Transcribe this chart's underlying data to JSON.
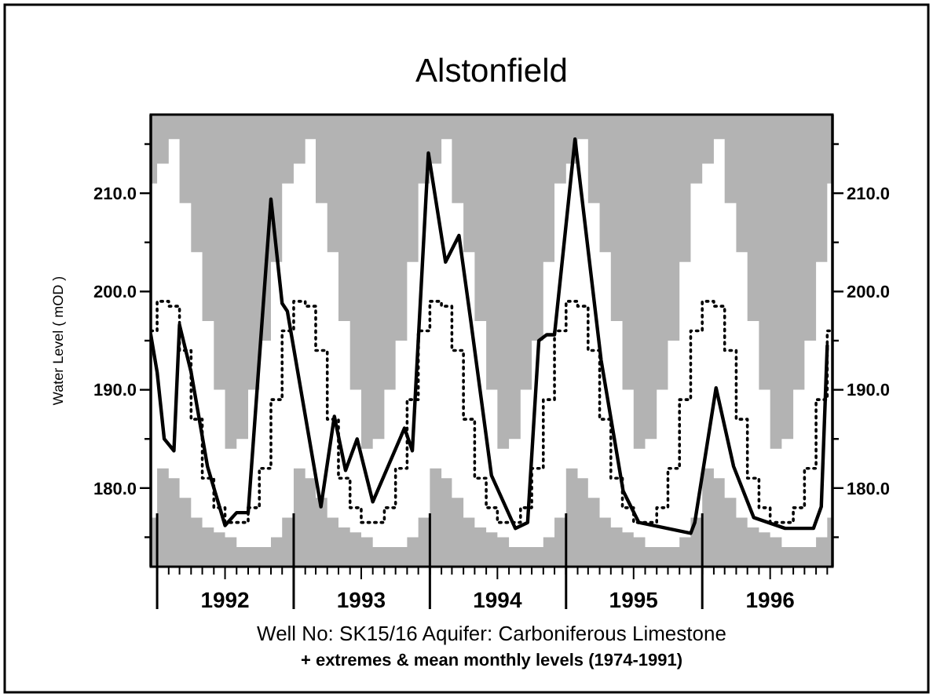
{
  "chart_data": {
    "type": "line",
    "title": "Alstonfield",
    "ylabel": "Water Level ( mOD )",
    "annotations": [
      "Well No: SK15/16  Aquifer: Carboniferous Limestone",
      "+ extremes & mean monthly levels (1974-1991)"
    ],
    "xlim": [
      "1991-12-15",
      "1996-12-15"
    ],
    "xticks": [
      {
        "value": "1992-01",
        "label": null
      },
      {
        "value": "1992-02",
        "label": null
      },
      {
        "value": "1992-03",
        "label": null
      },
      {
        "value": "1992-04",
        "label": null
      },
      {
        "value": "1992-05",
        "label": null
      },
      {
        "value": "1992-06",
        "label": null
      },
      {
        "value": "1992-07",
        "label": "1992"
      },
      {
        "value": "1992-08",
        "label": null
      },
      {
        "value": "1992-09",
        "label": null
      },
      {
        "value": "1992-10",
        "label": null
      },
      {
        "value": "1992-11",
        "label": null
      },
      {
        "value": "1992-12",
        "label": null
      },
      {
        "value": "1993-01",
        "label": null
      },
      {
        "value": "1993-02",
        "label": null
      },
      {
        "value": "1993-03",
        "label": null
      },
      {
        "value": "1993-04",
        "label": null
      },
      {
        "value": "1993-05",
        "label": null
      },
      {
        "value": "1993-06",
        "label": null
      },
      {
        "value": "1993-07",
        "label": "1993"
      },
      {
        "value": "1993-08",
        "label": null
      },
      {
        "value": "1993-09",
        "label": null
      },
      {
        "value": "1993-10",
        "label": null
      },
      {
        "value": "1993-11",
        "label": null
      },
      {
        "value": "1993-12",
        "label": null
      },
      {
        "value": "1994-01",
        "label": null
      },
      {
        "value": "1994-02",
        "label": null
      },
      {
        "value": "1994-03",
        "label": null
      },
      {
        "value": "1994-04",
        "label": null
      },
      {
        "value": "1994-05",
        "label": null
      },
      {
        "value": "1994-06",
        "label": null
      },
      {
        "value": "1994-07",
        "label": "1994"
      },
      {
        "value": "1994-08",
        "label": null
      },
      {
        "value": "1994-09",
        "label": null
      },
      {
        "value": "1994-10",
        "label": null
      },
      {
        "value": "1994-11",
        "label": null
      },
      {
        "value": "1994-12",
        "label": null
      },
      {
        "value": "1995-01",
        "label": null
      },
      {
        "value": "1995-02",
        "label": null
      },
      {
        "value": "1995-03",
        "label": null
      },
      {
        "value": "1995-04",
        "label": null
      },
      {
        "value": "1995-05",
        "label": null
      },
      {
        "value": "1995-06",
        "label": null
      },
      {
        "value": "1995-07",
        "label": "1995"
      },
      {
        "value": "1995-08",
        "label": null
      },
      {
        "value": "1995-09",
        "label": null
      },
      {
        "value": "1995-10",
        "label": null
      },
      {
        "value": "1995-11",
        "label": null
      },
      {
        "value": "1995-12",
        "label": null
      },
      {
        "value": "1996-01",
        "label": null
      },
      {
        "value": "1996-02",
        "label": null
      },
      {
        "value": "1996-03",
        "label": null
      },
      {
        "value": "1996-04",
        "label": null
      },
      {
        "value": "1996-05",
        "label": null
      },
      {
        "value": "1996-06",
        "label": null
      },
      {
        "value": "1996-07",
        "label": "1996"
      },
      {
        "value": "1996-08",
        "label": null
      },
      {
        "value": "1996-09",
        "label": null
      },
      {
        "value": "1996-10",
        "label": null
      },
      {
        "value": "1996-11",
        "label": null
      },
      {
        "value": "1996-12",
        "label": null
      }
    ],
    "ylim": [
      172,
      218
    ],
    "yticks": [
      {
        "value": 175,
        "label": null
      },
      {
        "value": 180,
        "label": "180.0"
      },
      {
        "value": 185,
        "label": null
      },
      {
        "value": 190,
        "label": "190.0"
      },
      {
        "value": 195,
        "label": null
      },
      {
        "value": 200,
        "label": "200.0"
      },
      {
        "value": 205,
        "label": null
      },
      {
        "value": 210,
        "label": "210.0"
      },
      {
        "value": 215,
        "label": null
      }
    ],
    "y2lim": [
      172,
      218
    ],
    "y2ticks": [
      {
        "value": 175,
        "label": null
      },
      {
        "value": 180,
        "label": "180.0"
      },
      {
        "value": 185,
        "label": null
      },
      {
        "value": 190,
        "label": "190.0"
      },
      {
        "value": 195,
        "label": null
      },
      {
        "value": 200,
        "label": "200.0"
      },
      {
        "value": 205,
        "label": null
      },
      {
        "value": 210,
        "label": "210.0"
      },
      {
        "value": 215,
        "label": null
      }
    ],
    "grid": false,
    "ref_lines": [
      {
        "axis": "x",
        "value": "1992-01-01"
      },
      {
        "axis": "x",
        "value": "1993-01-01"
      },
      {
        "axis": "x",
        "value": "1994-01-01"
      },
      {
        "axis": "x",
        "value": "1995-01-01"
      },
      {
        "axis": "x",
        "value": "1996-01-01"
      }
    ],
    "series": [
      {
        "type": "step",
        "color": "#000000",
        "line_style": "dotted",
        "x": [
          "1991-12-15",
          "1992-01",
          "1992-02",
          "1992-03",
          "1992-04",
          "1992-05",
          "1992-06",
          "1992-07",
          "1992-08",
          "1992-09",
          "1992-10",
          "1992-11",
          "1992-12",
          "1993-01",
          "1993-02",
          "1993-03",
          "1993-04",
          "1993-05",
          "1993-06",
          "1993-07",
          "1993-08",
          "1993-09",
          "1993-10",
          "1993-11",
          "1993-12",
          "1994-01",
          "1994-02",
          "1994-03",
          "1994-04",
          "1994-05",
          "1994-06",
          "1994-07",
          "1994-08",
          "1994-09",
          "1994-10",
          "1994-11",
          "1994-12",
          "1995-01",
          "1995-02",
          "1995-03",
          "1995-04",
          "1995-05",
          "1995-06",
          "1995-07",
          "1995-08",
          "1995-09",
          "1995-10",
          "1995-11",
          "1995-12",
          "1996-01",
          "1996-02",
          "1996-03",
          "1996-04",
          "1996-05",
          "1996-06",
          "1996-07",
          "1996-08",
          "1996-09",
          "1996-10",
          "1996-11",
          "1996-12",
          "1996-12-15"
        ],
        "values": [
          196,
          199,
          198.5,
          194,
          187,
          181,
          178,
          176.5,
          176.5,
          178,
          182,
          189,
          196,
          199,
          198.5,
          194,
          187,
          181,
          178,
          176.5,
          176.5,
          178,
          182,
          189,
          196,
          199,
          198.5,
          194,
          187,
          181,
          178,
          176.5,
          176.5,
          178,
          182,
          189,
          196,
          199,
          198.5,
          194,
          187,
          181,
          178,
          176.5,
          176.5,
          178,
          182,
          189,
          196,
          199,
          198.5,
          194,
          187,
          181,
          178,
          176.5,
          176.5,
          178,
          182,
          189,
          196,
          196
        ],
        "lower": [
          177,
          182,
          181,
          179,
          177,
          176,
          175.5,
          175,
          174,
          174,
          174,
          175,
          177,
          182,
          181,
          179,
          177,
          176,
          175.5,
          175,
          174,
          174,
          174,
          175,
          177,
          182,
          181,
          179,
          177,
          176,
          175.5,
          175,
          174,
          174,
          174,
          175,
          177,
          182,
          181,
          179,
          177,
          176,
          175.5,
          175,
          174,
          174,
          174,
          175,
          177,
          182,
          181,
          179,
          177,
          176,
          175.5,
          175,
          174,
          174,
          174,
          175,
          177,
          177
        ],
        "upper": [
          211,
          213,
          215.5,
          209,
          204,
          197,
          190,
          184,
          185,
          190,
          195,
          203,
          211,
          213,
          215.5,
          209,
          204,
          197,
          190,
          184,
          185,
          190,
          195,
          203,
          211,
          213,
          215.5,
          209,
          204,
          197,
          190,
          184,
          185,
          190,
          195,
          203,
          211,
          213,
          215.5,
          209,
          204,
          197,
          190,
          184,
          185,
          190,
          195,
          203,
          211,
          213,
          215.5,
          209,
          204,
          197,
          190,
          184,
          185,
          190,
          195,
          203,
          211,
          211
        ]
      },
      {
        "type": "line",
        "color": "#000000",
        "line_style": "solid",
        "x": [
          "1991-12-15",
          "1992-01-01",
          "1992-01-20",
          "1992-02-15",
          "1992-03-01",
          "1992-04-01",
          "1992-05-15",
          "1992-07-01",
          "1992-08-01",
          "1992-09-01",
          "1992-11-01",
          "1992-12-01",
          "1992-12-15",
          "1993-03-15",
          "1993-04-20",
          "1993-05-20",
          "1993-06-20",
          "1993-08-01",
          "1993-10-25",
          "1993-11-15",
          "1993-12-28",
          "1994-02-12",
          "1994-03-20",
          "1994-04-20",
          "1994-06-15",
          "1994-08-18",
          "1994-09-20",
          "1994-10-20",
          "1994-11-10",
          "1994-12-01",
          "1995-01-25",
          "1995-04-05",
          "1995-06-03",
          "1995-07-15",
          "1995-12-01",
          "1995-12-12",
          "1996-02-07",
          "1996-03-25",
          "1996-05-18",
          "1996-08-10",
          "1996-10-25",
          "1996-11-15",
          "1996-12-01"
        ],
        "values": [
          195.6,
          191.8,
          185,
          183.8,
          196.6,
          191.8,
          182.2,
          176.2,
          177.5,
          177.5,
          209.4,
          198.8,
          198,
          178.1,
          187.3,
          181.8,
          185,
          178.6,
          186.1,
          183.8,
          214.1,
          203,
          205.7,
          197.2,
          181.3,
          175.9,
          176.5,
          195,
          195.6,
          195.6,
          215.5,
          193,
          179.7,
          176.5,
          175.4,
          176.5,
          190.2,
          182.2,
          177,
          175.9,
          175.9,
          178.1,
          194.5
        ]
      }
    ]
  }
}
